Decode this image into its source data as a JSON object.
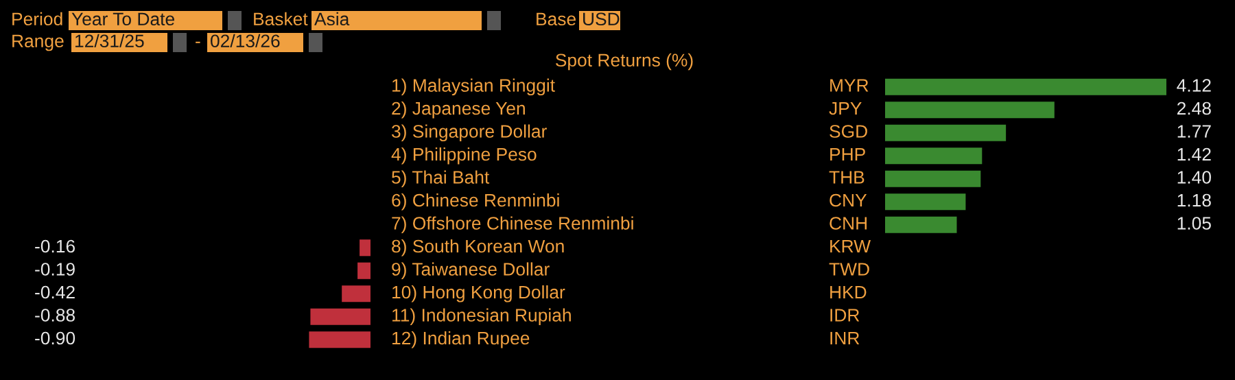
{
  "chart_data": [
    {
      "type": "bar",
      "orientation": "horizontal",
      "title": "Spot Returns (%)",
      "annotations": [
        "Period",
        "Year To Date",
        "Basket",
        "Asia",
        "Base",
        "USD",
        "Range",
        "12/31/25",
        "-",
        "02/13/26"
      ],
      "categories": [
        "1) Malaysian Ringgit",
        "2) Japanese Yen",
        "3) Singapore Dollar",
        "4) Philippine Peso",
        "5) Thai Baht",
        "6) Chinese Renminbi",
        "7) Offshore Chinese Renminbi",
        "8) South Korean Won",
        "9) Taiwanese Dollar",
        "10) Hong Kong Dollar",
        "11) Indonesian Rupiah",
        "12) Indian Rupee"
      ],
      "values": [
        null,
        null,
        null,
        null,
        null,
        null,
        null,
        -0.16,
        -0.19,
        -0.42,
        -0.88,
        -0.9
      ],
      "colors": [
        null,
        null,
        null,
        null,
        null,
        null,
        null,
        "#c0303c",
        "#c0303c",
        "#c0303c",
        "#c0303c",
        "#c0303c"
      ],
      "value_labels": [
        null,
        null,
        null,
        null,
        null,
        null,
        null,
        "-0.16",
        "-0.19",
        "-0.42",
        "-0.88",
        "-0.90"
      ]
    },
    {
      "type": "bar",
      "orientation": "horizontal",
      "categories": [
        "MYR",
        "JPY",
        "SGD",
        "PHP",
        "THB",
        "CNY",
        "CNH",
        "KRW",
        "TWD",
        "HKD",
        "IDR",
        "INR"
      ],
      "values": [
        4.12,
        2.48,
        1.77,
        1.42,
        1.4,
        1.18,
        1.05,
        null,
        null,
        null,
        null,
        null
      ],
      "colors": [
        "#3a8a30",
        "#3a8a30",
        "#3a8a30",
        "#3a8a30",
        "#3a8a30",
        "#3a8a30",
        "#3a8a30",
        null,
        null,
        null,
        null,
        null
      ],
      "value_labels": [
        "4.12",
        "2.48",
        "1.77",
        "1.42",
        "1.40",
        "1.18",
        "1.05",
        null,
        null,
        null,
        null,
        null
      ]
    }
  ]
}
